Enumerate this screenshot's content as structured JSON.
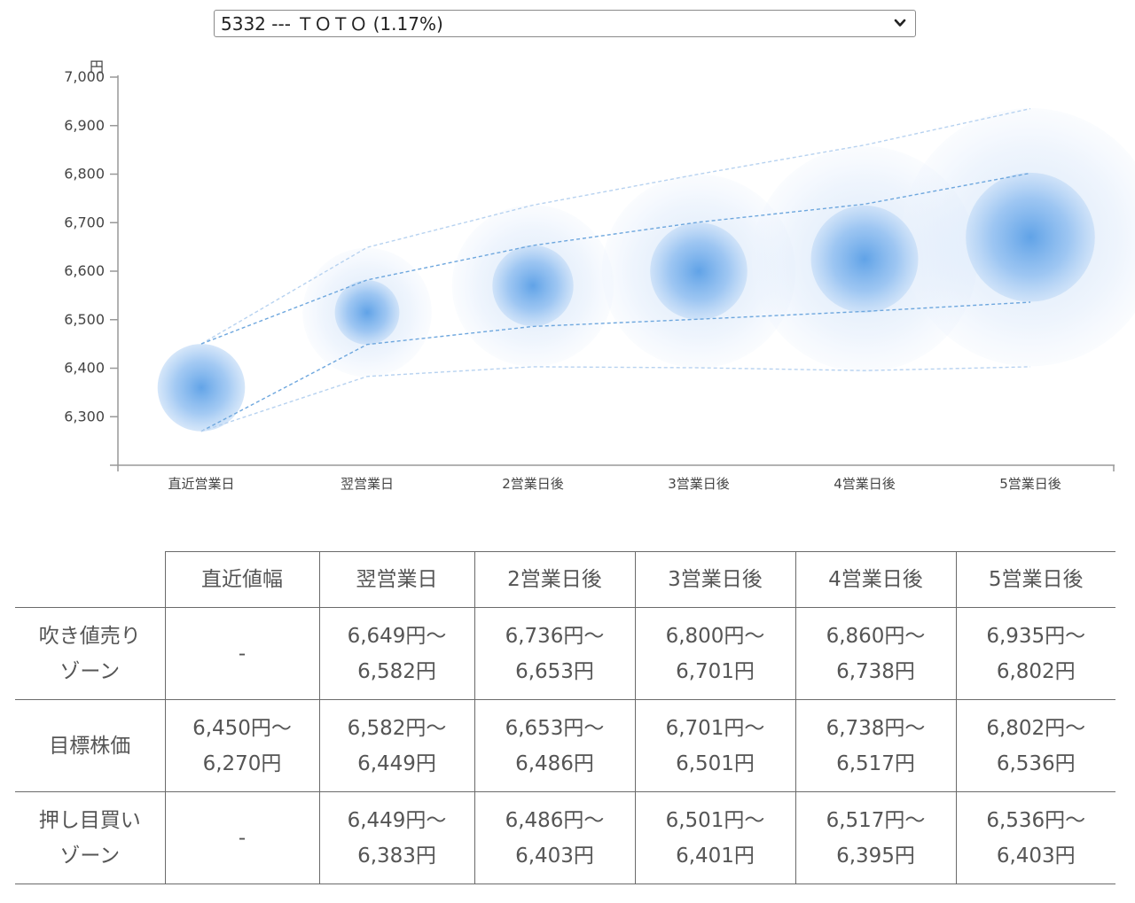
{
  "selector": {
    "value": "5332 --- ＴＯＴＯ (1.17%)"
  },
  "chart_data": {
    "type": "scatter",
    "ylabel": "円",
    "ylim": [
      6200,
      7000
    ],
    "yticks": [
      6300,
      6400,
      6500,
      6600,
      6700,
      6800,
      6900,
      7000
    ],
    "ytick_labels": [
      "6,300",
      "6,400",
      "6,500",
      "6,600",
      "6,700",
      "6,800",
      "6,900",
      "7,000"
    ],
    "categories": [
      "直近営業日",
      "翌営業日",
      "2営業日後",
      "3営業日後",
      "4営業日後",
      "5営業日後"
    ],
    "centers": [
      6360,
      6515,
      6570,
      6600,
      6625,
      6670
    ],
    "bands": {
      "sell_upper": [
        6450,
        6649,
        6736,
        6800,
        6860,
        6935
      ],
      "target_upper": [
        6450,
        6582,
        6653,
        6701,
        6738,
        6802
      ],
      "target_lower": [
        6270,
        6449,
        6486,
        6501,
        6517,
        6536
      ],
      "buy_lower": [
        6270,
        6383,
        6403,
        6401,
        6395,
        6403
      ]
    },
    "colors": {
      "bubble": "#4a90e2",
      "band_line": "#5b9bd8",
      "axis": "#999999"
    }
  },
  "table": {
    "headers": [
      "直近値幅",
      "翌営業日",
      "2営業日後",
      "3営業日後",
      "4営業日後",
      "5営業日後"
    ],
    "rows": [
      {
        "label": [
          "吹き値売り",
          "ゾーン"
        ],
        "cells": [
          [
            "-"
          ],
          [
            "6,649円～",
            "6,582円"
          ],
          [
            "6,736円～",
            "6,653円"
          ],
          [
            "6,800円～",
            "6,701円"
          ],
          [
            "6,860円～",
            "6,738円"
          ],
          [
            "6,935円～",
            "6,802円"
          ]
        ]
      },
      {
        "label": [
          "目標株価"
        ],
        "cells": [
          [
            "6,450円～",
            "6,270円"
          ],
          [
            "6,582円～",
            "6,449円"
          ],
          [
            "6,653円～",
            "6,486円"
          ],
          [
            "6,701円～",
            "6,501円"
          ],
          [
            "6,738円～",
            "6,517円"
          ],
          [
            "6,802円～",
            "6,536円"
          ]
        ]
      },
      {
        "label": [
          "押し目買い",
          "ゾーン"
        ],
        "cells": [
          [
            "-"
          ],
          [
            "6,449円～",
            "6,383円"
          ],
          [
            "6,486円～",
            "6,403円"
          ],
          [
            "6,501円～",
            "6,401円"
          ],
          [
            "6,517円～",
            "6,395円"
          ],
          [
            "6,536円～",
            "6,403円"
          ]
        ]
      }
    ]
  }
}
